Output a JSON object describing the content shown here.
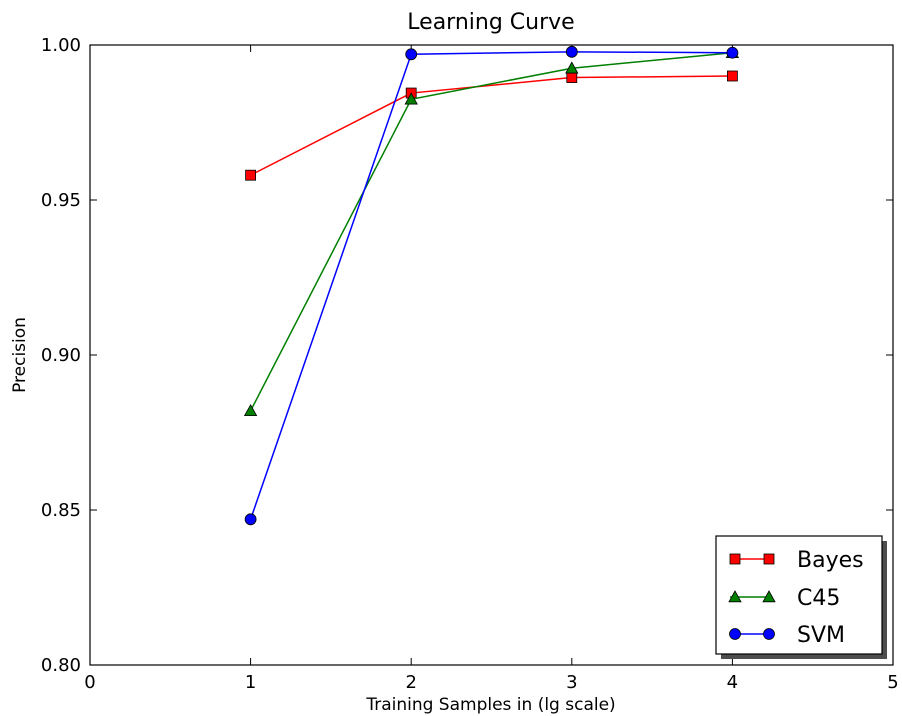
{
  "chart_data": {
    "type": "line",
    "title": "Learning Curve",
    "xlabel": "Training Samples in (lg scale)",
    "ylabel": "Precision",
    "xlim": [
      0,
      5
    ],
    "ylim": [
      0.8,
      1.0
    ],
    "xticks": [
      0,
      1,
      2,
      3,
      4,
      5
    ],
    "xtick_labels": [
      "0",
      "1",
      "2",
      "3",
      "4",
      "5"
    ],
    "yticks": [
      0.8,
      0.85,
      0.9,
      0.95,
      1.0
    ],
    "ytick_labels": [
      "0.80",
      "0.85",
      "0.90",
      "0.95",
      "1.00"
    ],
    "grid": false,
    "legend_position": "bottom-right",
    "x": [
      1,
      2,
      3,
      4
    ],
    "series": [
      {
        "name": "Bayes",
        "color": "#ff0000",
        "marker": "square",
        "values": [
          0.958,
          0.9845,
          0.9895,
          0.99
        ]
      },
      {
        "name": "C45",
        "color": "#007f00",
        "marker": "triangle",
        "values": [
          0.882,
          0.9825,
          0.9925,
          0.9975
        ]
      },
      {
        "name": "SVM",
        "color": "#0000ff",
        "marker": "circle",
        "values": [
          0.847,
          0.997,
          0.9978,
          0.9975
        ]
      }
    ]
  }
}
